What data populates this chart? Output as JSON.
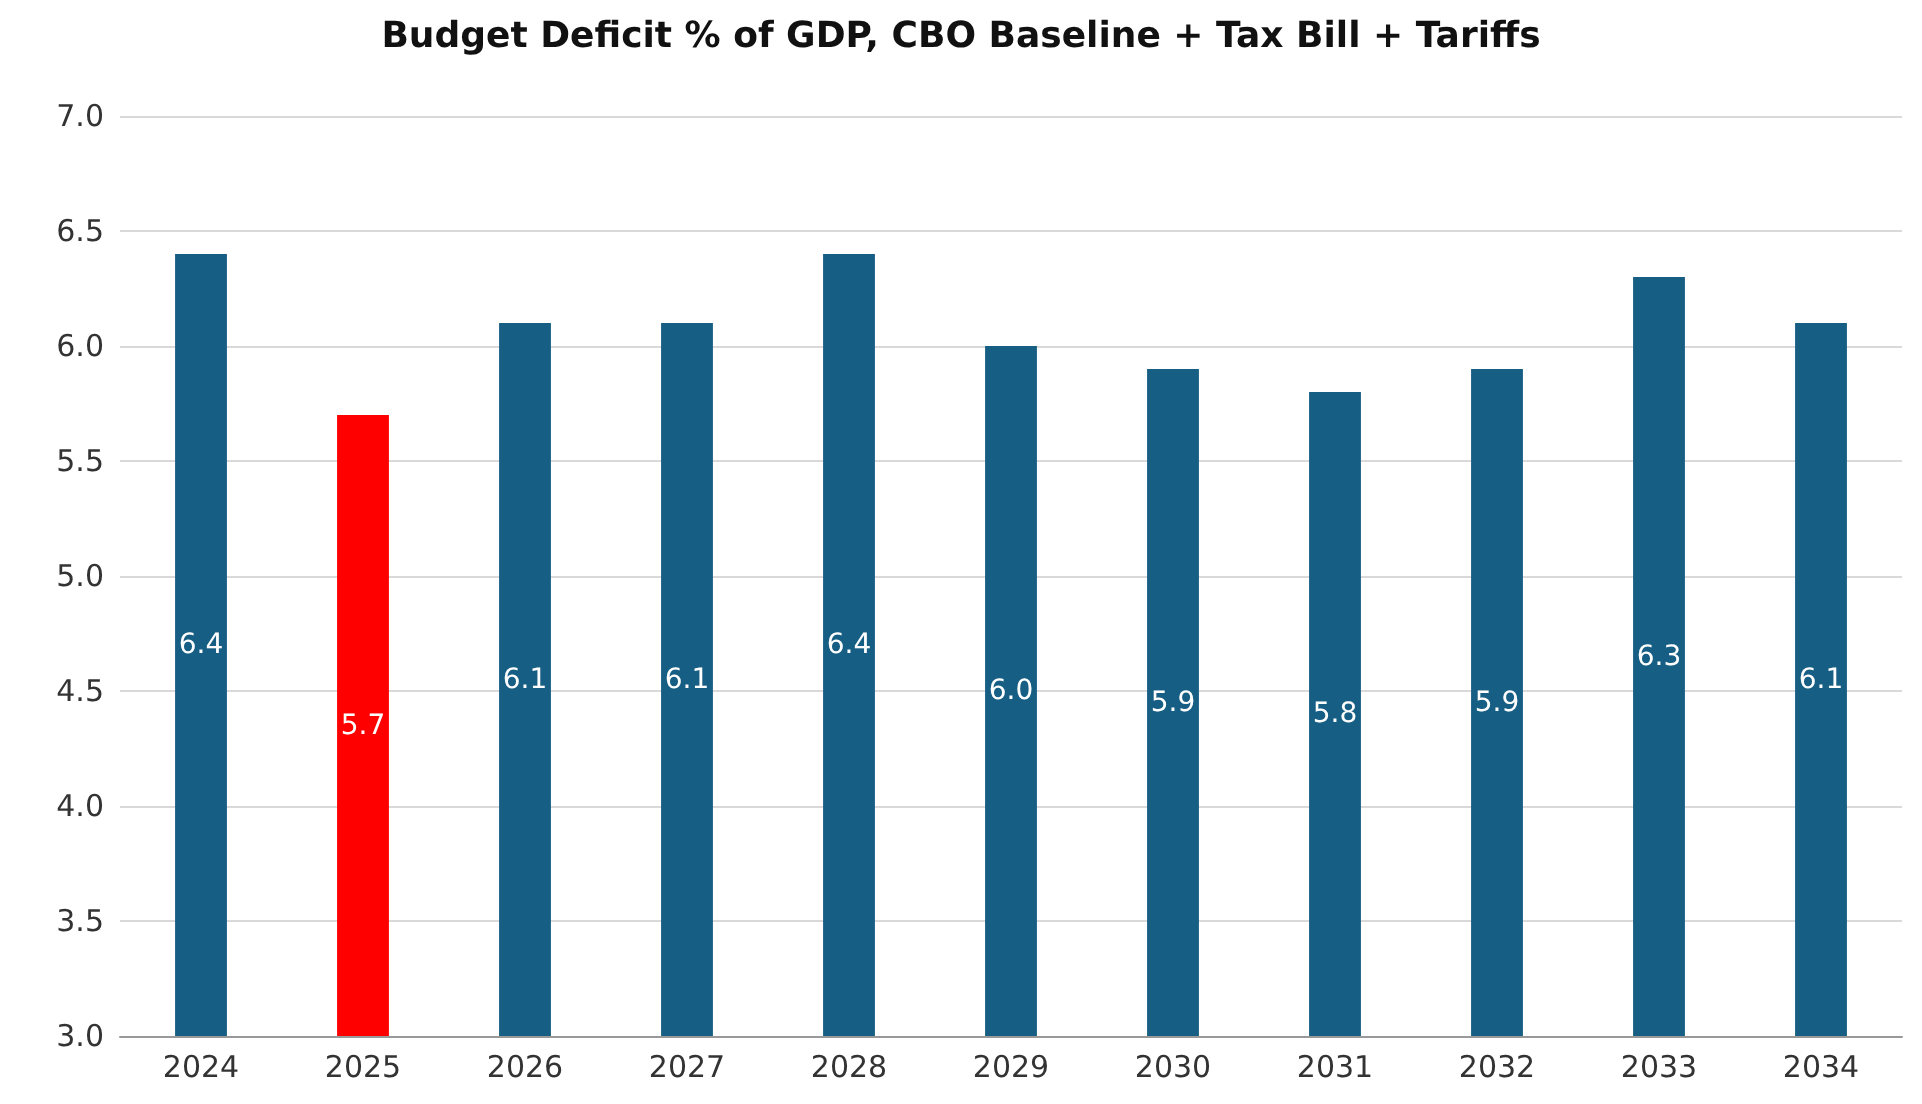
{
  "chart_data": {
    "type": "bar",
    "title": "Budget Deficit % of GDP, CBO Baseline + Tax Bill + Tariffs",
    "categories": [
      "2024",
      "2025",
      "2026",
      "2027",
      "2028",
      "2029",
      "2030",
      "2031",
      "2032",
      "2033",
      "2034"
    ],
    "values": [
      6.4,
      5.7,
      6.1,
      6.1,
      6.4,
      6.0,
      5.9,
      5.8,
      5.9,
      6.3,
      6.1
    ],
    "colors": [
      "#165e83",
      "#ff0000",
      "#165e83",
      "#165e83",
      "#165e83",
      "#165e83",
      "#165e83",
      "#165e83",
      "#165e83",
      "#165e83",
      "#165e83"
    ],
    "value_labels": [
      "6.4",
      "5.7",
      "6.1",
      "6.1",
      "6.4",
      "6.0",
      "5.9",
      "5.8",
      "5.9",
      "6.3",
      "6.1"
    ],
    "ylim": [
      3.0,
      7.0
    ],
    "yticks": [
      {
        "value": 3,
        "label": "3.0"
      },
      {
        "value": 3.5,
        "label": "3.5"
      },
      {
        "value": 4,
        "label": "4.0"
      },
      {
        "value": 4.5,
        "label": "4.5"
      },
      {
        "value": 5,
        "label": "5.0"
      },
      {
        "value": 5.5,
        "label": "5.5"
      },
      {
        "value": 6,
        "label": "6.0"
      },
      {
        "value": 6.5,
        "label": "6.5"
      },
      {
        "value": 7,
        "label": "7.0"
      }
    ],
    "grid": "y"
  }
}
